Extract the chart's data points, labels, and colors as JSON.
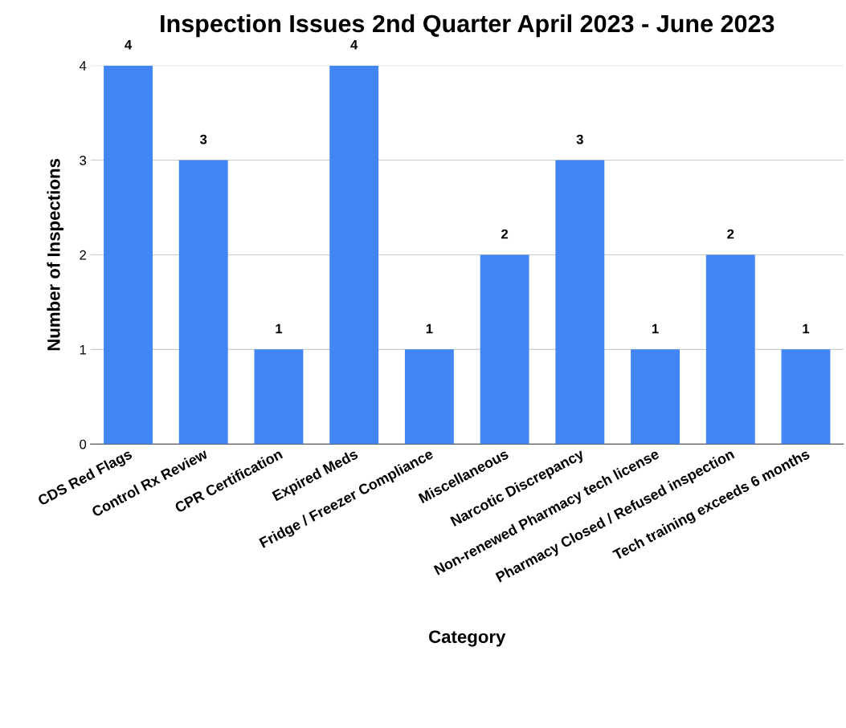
{
  "chart_data": {
    "type": "bar",
    "title": "Inspection Issues 2nd Quarter April 2023 - June 2023",
    "xlabel": "Category",
    "ylabel": "Number of Inspections",
    "categories": [
      "CDS Red Flags",
      "Control Rx Review",
      "CPR Certification",
      "Expired Meds",
      "Fridge / Freezer Compliance",
      "Miscellaneous",
      "Narcotic Discrepancy",
      "Non-renewed Pharmacy tech license",
      "Pharmacy Closed / Refused inspection",
      "Tech training exceeds 6 months"
    ],
    "values": [
      4,
      3,
      1,
      4,
      1,
      2,
      3,
      1,
      2,
      1
    ],
    "color": "#4285f4",
    "ylim": [
      0,
      4
    ],
    "yticks": [
      0,
      1,
      2,
      3,
      4
    ],
    "grid": "y",
    "data_labels": true,
    "legend": false
  }
}
